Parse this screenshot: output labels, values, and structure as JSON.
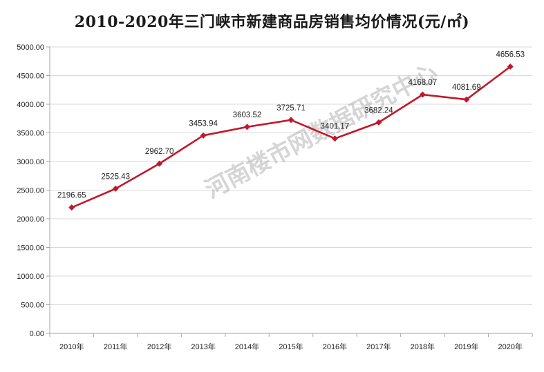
{
  "chart_data": {
    "type": "line",
    "title": "2010-2020年三门峡市新建商品房销售均价情况(元/㎡)",
    "xlabel": "",
    "ylabel": "",
    "categories": [
      "2010年",
      "2011年",
      "2012年",
      "2013年",
      "2014年",
      "2015年",
      "2016年",
      "2017年",
      "2018年",
      "2019年",
      "2020年"
    ],
    "series": [
      {
        "values": [
          2196.65,
          2525.43,
          2962.7,
          3453.94,
          3603.52,
          3725.71,
          3401.17,
          3682.24,
          4168.07,
          4081.69,
          4656.53
        ],
        "data_labels": [
          "2196.65",
          "2525.43",
          "2962.70",
          "3453.94",
          "3603.52",
          "3725.71",
          "3401.17",
          "3682.24",
          "4168.07",
          "4081.69",
          "4656.53"
        ]
      }
    ],
    "ylim": [
      0,
      5000
    ],
    "y_ticks": [
      "0.00",
      "500.00",
      "1000.00",
      "1500.00",
      "2000.00",
      "2500.00",
      "3000.00",
      "3500.00",
      "4000.00",
      "4500.00",
      "5000.00"
    ],
    "grid": true,
    "legend": "none",
    "colors": {
      "line": "#c0182a",
      "grid": "#d9d9d9",
      "axis": "#a6a6a6"
    }
  },
  "watermark": "河南楼市网数据研究中心"
}
